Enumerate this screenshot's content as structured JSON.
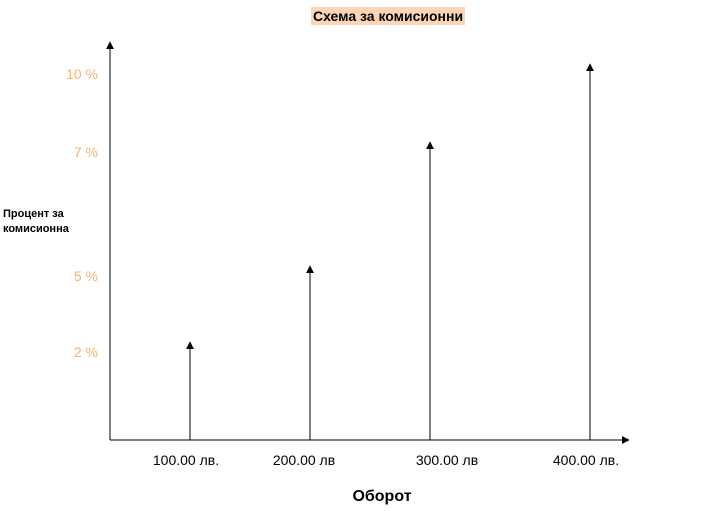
{
  "chart_data": {
    "type": "bar",
    "title": "Схема за комисионни",
    "xlabel": "Оборот",
    "ylabel": "Процент за комисионна",
    "categories": [
      "100.00 лв.",
      "200.00 лв",
      "300.00 лв",
      "400.00 лв."
    ],
    "values": [
      2,
      5,
      7,
      10
    ],
    "yticks": [
      {
        "value": 2,
        "label": "2 %"
      },
      {
        "value": 5,
        "label": "5 %"
      },
      {
        "value": 7,
        "label": "7 %"
      },
      {
        "value": 10,
        "label": "10 %"
      }
    ],
    "colors": {
      "title_highlight": "#fbd5b5",
      "tick_labels": "#f7b26c",
      "lines": "#000000"
    },
    "grid": false
  }
}
